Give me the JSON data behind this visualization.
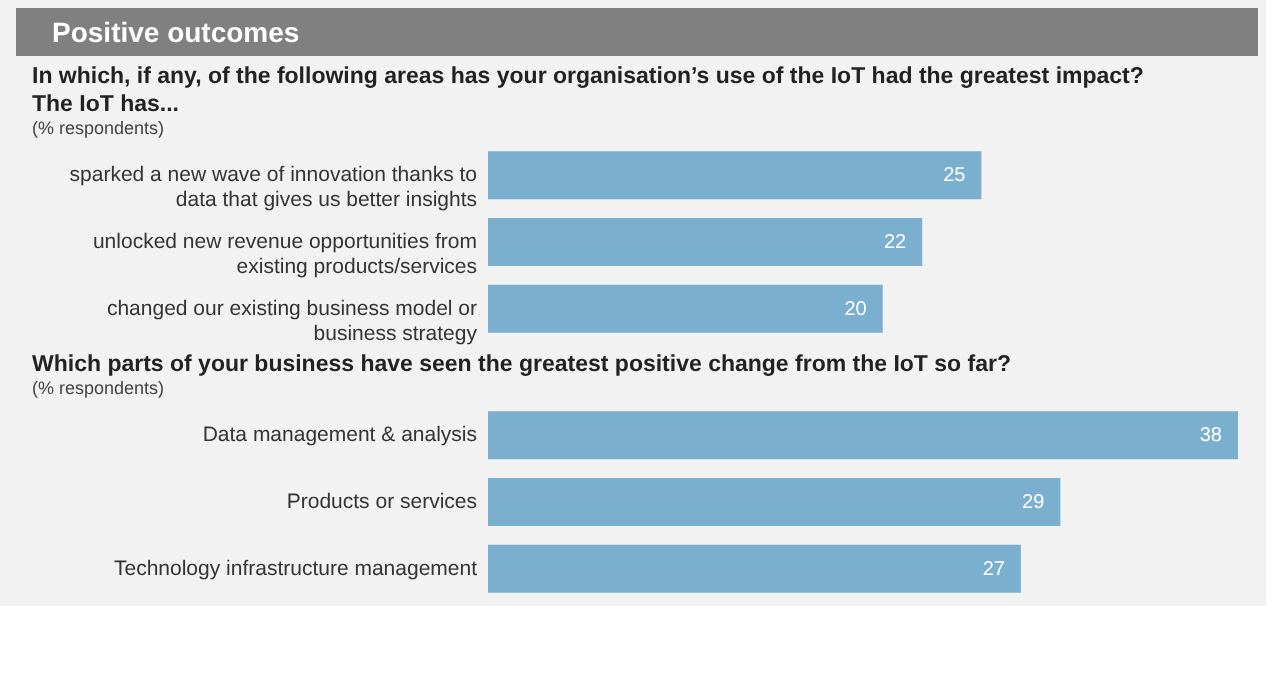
{
  "chart_data": [
    {
      "type": "bar",
      "orientation": "horizontal",
      "title": "Positive outcomes",
      "subtitle": "In which, if any, of the following areas has your organisation’s use of the IoT had the greatest impact?\nThe IoT has...",
      "annotations": [
        "(% respondents)"
      ],
      "categories": [
        "sparked a new wave of innovation thanks to data that gives us better insights",
        "unlocked new revenue opportunities from existing products/services",
        "changed our existing business model or business strategy"
      ],
      "values": [
        25,
        22,
        20
      ],
      "color": "#7bafd0",
      "data_labels": true
    },
    {
      "type": "bar",
      "orientation": "horizontal",
      "subtitle": "Which parts of your business have seen the greatest positive change from the IoT so far?",
      "annotations": [
        "(% respondents)"
      ],
      "categories": [
        "Data management & analysis",
        "Products or services",
        "Technology infrastructure management"
      ],
      "values": [
        38,
        29,
        27
      ],
      "color": "#7bafd0",
      "data_labels": true
    }
  ]
}
